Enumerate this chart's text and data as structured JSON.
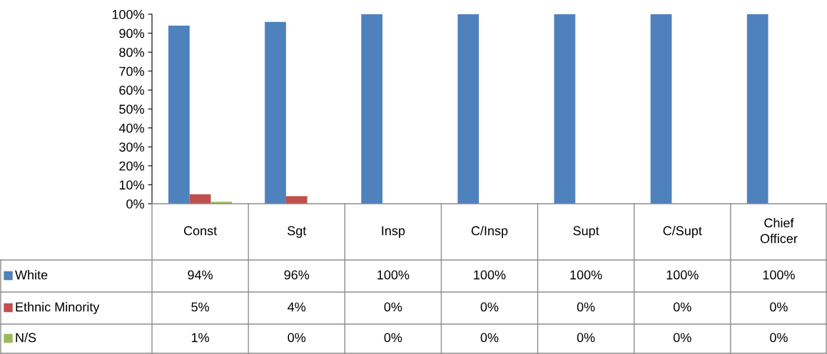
{
  "chart_data": {
    "type": "bar",
    "categories": [
      "Const",
      "Sgt",
      "Insp",
      "C/Insp",
      "Supt",
      "C/Supt",
      "Chief\nOfficer"
    ],
    "series": [
      {
        "name": "White",
        "color": "#4f81bd",
        "values": [
          94,
          96,
          100,
          100,
          100,
          100,
          100
        ],
        "value_labels": [
          "94%",
          "96%",
          "100%",
          "100%",
          "100%",
          "100%",
          "100%"
        ]
      },
      {
        "name": "Ethnic Minority",
        "color": "#c0504d",
        "values": [
          5,
          4,
          0,
          0,
          0,
          0,
          0
        ],
        "value_labels": [
          "5%",
          "4%",
          "0%",
          "0%",
          "0%",
          "0%",
          "0%"
        ]
      },
      {
        "name": "N/S",
        "color": "#9bbb59",
        "values": [
          1,
          0,
          0,
          0,
          0,
          0,
          0
        ],
        "value_labels": [
          "1%",
          "0%",
          "0%",
          "0%",
          "0%",
          "0%",
          "0%"
        ]
      }
    ],
    "ylim": [
      0,
      100
    ],
    "yticks": [
      {
        "value": 0,
        "label": "0%"
      },
      {
        "value": 10,
        "label": "10%"
      },
      {
        "value": 20,
        "label": "20%"
      },
      {
        "value": 30,
        "label": "30%"
      },
      {
        "value": 40,
        "label": "40%"
      },
      {
        "value": 50,
        "label": "50%"
      },
      {
        "value": 60,
        "label": "60%"
      },
      {
        "value": 70,
        "label": "70%"
      },
      {
        "value": 80,
        "label": "80%"
      },
      {
        "value": 90,
        "label": "90%"
      },
      {
        "value": 100,
        "label": "100%"
      }
    ],
    "grid": false,
    "legend": "bottom left"
  }
}
